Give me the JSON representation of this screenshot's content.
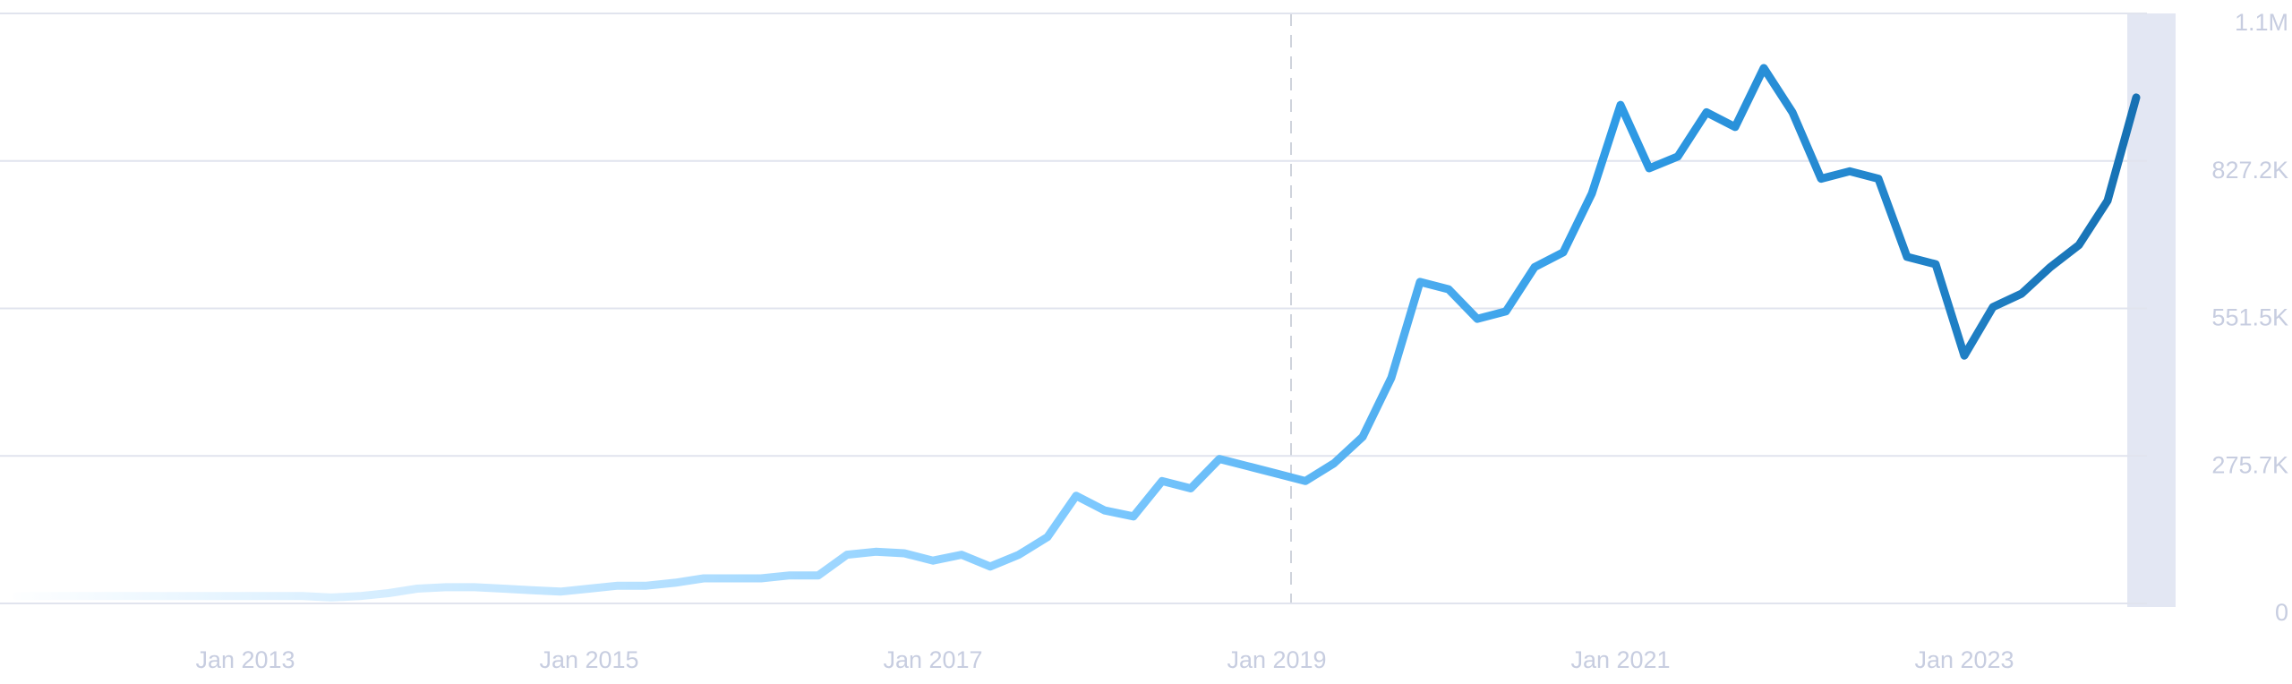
{
  "chart_data": {
    "type": "line",
    "x": [
      "2011-09",
      "2011-11",
      "2012-01",
      "2012-03",
      "2012-05",
      "2012-07",
      "2012-09",
      "2012-11",
      "2013-01",
      "2013-03",
      "2013-05",
      "2013-07",
      "2013-09",
      "2013-11",
      "2014-01",
      "2014-03",
      "2014-05",
      "2014-07",
      "2014-09",
      "2014-11",
      "2015-01",
      "2015-03",
      "2015-05",
      "2015-07",
      "2015-09",
      "2015-11",
      "2016-01",
      "2016-03",
      "2016-05",
      "2016-07",
      "2016-09",
      "2016-11",
      "2017-01",
      "2017-03",
      "2017-05",
      "2017-07",
      "2017-09",
      "2017-11",
      "2018-01",
      "2018-03",
      "2018-05",
      "2018-07",
      "2018-09",
      "2018-11",
      "2019-01",
      "2019-03",
      "2019-05",
      "2019-07",
      "2019-09",
      "2019-11",
      "2020-01",
      "2020-03",
      "2020-05",
      "2020-07",
      "2020-09",
      "2020-11",
      "2021-01",
      "2021-03",
      "2021-05",
      "2021-07",
      "2021-09",
      "2021-11",
      "2022-01",
      "2022-03",
      "2022-05",
      "2022-07",
      "2022-09",
      "2022-11",
      "2023-01",
      "2023-03",
      "2023-05",
      "2023-07",
      "2023-09",
      "2023-11",
      "2024-01"
    ],
    "values": [
      13800,
      13800,
      13800,
      13800,
      13800,
      13800,
      13800,
      13800,
      13800,
      13800,
      13800,
      11000,
      13800,
      19300,
      27600,
      30300,
      30300,
      27600,
      24800,
      22100,
      27600,
      33100,
      33100,
      38600,
      46900,
      46900,
      46900,
      52400,
      52400,
      91000,
      96500,
      93700,
      80000,
      91000,
      69000,
      91000,
      124100,
      201300,
      173700,
      162700,
      228800,
      215000,
      270200,
      256400,
      242600,
      228800,
      261900,
      311500,
      421800,
      601000,
      587200,
      532100,
      545900,
      628600,
      656200,
      766400,
      931900,
      813300,
      835400,
      918100,
      890500,
      1000800,
      918100,
      794000,
      807800,
      794000,
      647900,
      634100,
      463200,
      554200,
      579000,
      628600,
      669900,
      752700,
      945700
    ],
    "xlim": [
      "2011-08",
      "2024-02"
    ],
    "xticks": [
      {
        "value": "2013-01",
        "label": "Jan 2013"
      },
      {
        "value": "2015-01",
        "label": "Jan 2015"
      },
      {
        "value": "2017-01",
        "label": "Jan 2017"
      },
      {
        "value": "2019-01",
        "label": "Jan 2019"
      },
      {
        "value": "2021-01",
        "label": "Jan 2021"
      },
      {
        "value": "2023-01",
        "label": "Jan 2023"
      }
    ],
    "ylim": [
      0,
      1102900
    ],
    "yticks": [
      0,
      {
        "value": 275700,
        "label": "275.7K"
      },
      {
        "value": 551500,
        "label": "551.5K"
      },
      {
        "value": 827200,
        "label": "827.2K"
      },
      {
        "value": 1102900,
        "label": "1.1M"
      }
    ],
    "grid": true,
    "line_gradient": [
      "#ffffff",
      "#c4e6ff",
      "#7fcaff",
      "#2f9be6",
      "#1670b2"
    ]
  }
}
